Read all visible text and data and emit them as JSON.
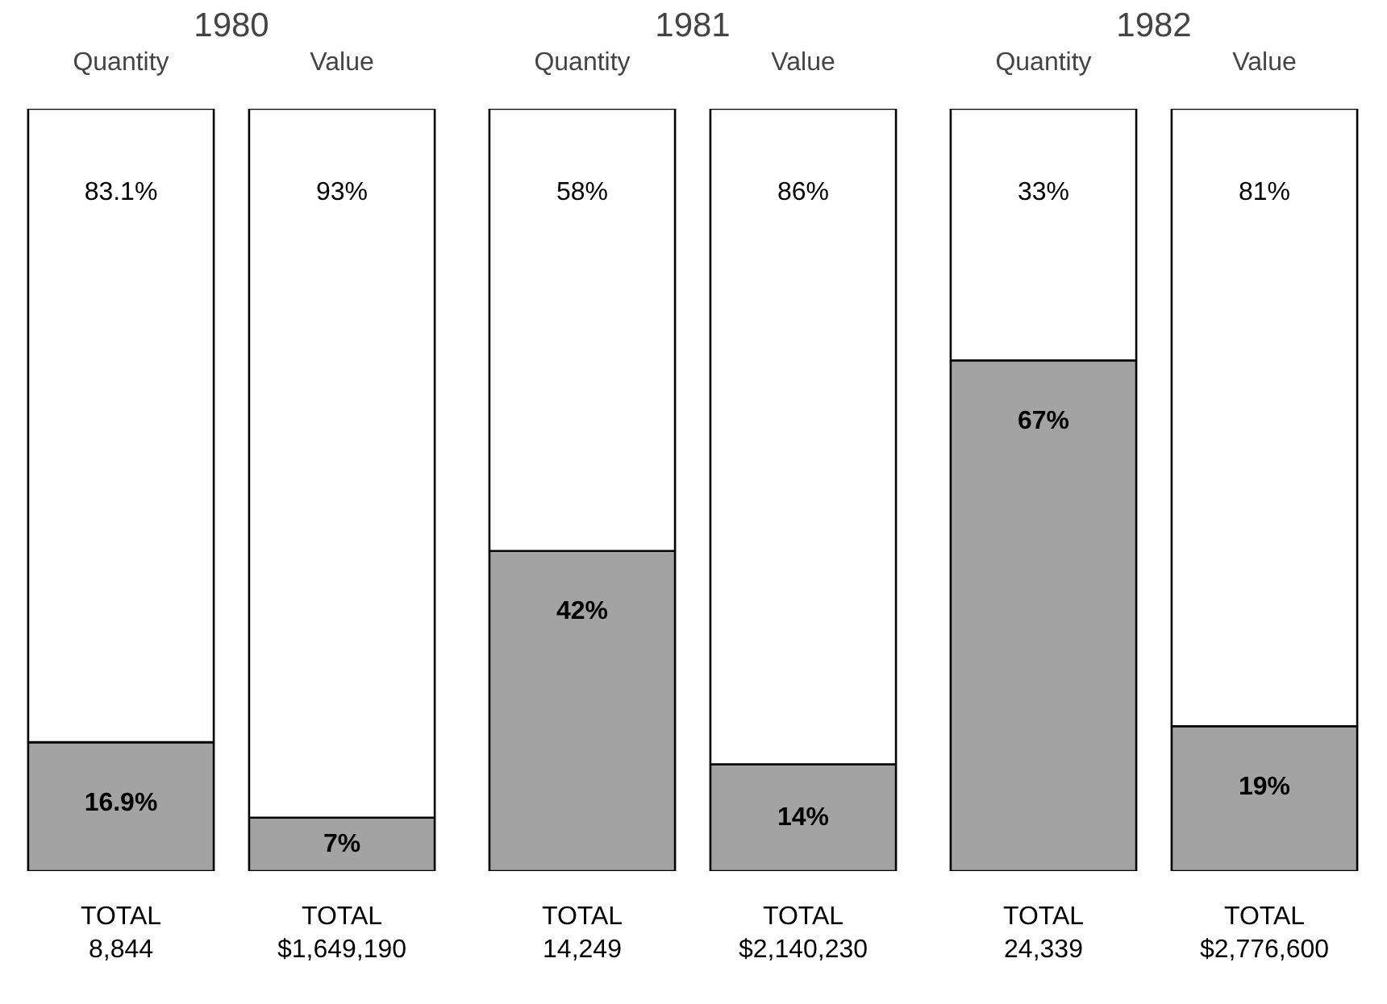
{
  "chart_data": [
    {
      "type": "bar",
      "stacked": true,
      "title": "1980",
      "categories": [
        "Quantity",
        "Value"
      ],
      "ylim": [
        0,
        100
      ],
      "tick_labels": "x",
      "series": [
        {
          "color": "#a3a3a3",
          "values": [
            16.9,
            7
          ],
          "value_labels": [
            "16.9%",
            "7%"
          ]
        },
        {
          "color": "#ffffff",
          "values": [
            83.1,
            93
          ],
          "value_labels": [
            "83.1%",
            "93%"
          ]
        }
      ],
      "annotations": [
        "TOTAL\n8,844",
        "TOTAL\n$1,649,190"
      ]
    },
    {
      "type": "bar",
      "stacked": true,
      "title": "1981",
      "categories": [
        "Quantity",
        "Value"
      ],
      "ylim": [
        0,
        100
      ],
      "tick_labels": "x",
      "series": [
        {
          "color": "#a3a3a3",
          "values": [
            42,
            14
          ],
          "value_labels": [
            "42%",
            "14%"
          ]
        },
        {
          "color": "#ffffff",
          "values": [
            58,
            86
          ],
          "value_labels": [
            "58%",
            "86%"
          ]
        }
      ],
      "annotations": [
        "TOTAL\n14,249",
        "TOTAL\n$2,140,230"
      ]
    },
    {
      "type": "bar",
      "stacked": true,
      "title": "1982",
      "categories": [
        "Quantity",
        "Value"
      ],
      "ylim": [
        0,
        100
      ],
      "tick_labels": "x",
      "series": [
        {
          "color": "#a3a3a3",
          "values": [
            67,
            19
          ],
          "value_labels": [
            "67%",
            "19%"
          ]
        },
        {
          "color": "#ffffff",
          "values": [
            33,
            81
          ],
          "value_labels": [
            "33%",
            "81%"
          ]
        }
      ],
      "annotations": [
        "TOTAL\n24,339",
        "TOTAL\n$2,776,600"
      ]
    }
  ]
}
